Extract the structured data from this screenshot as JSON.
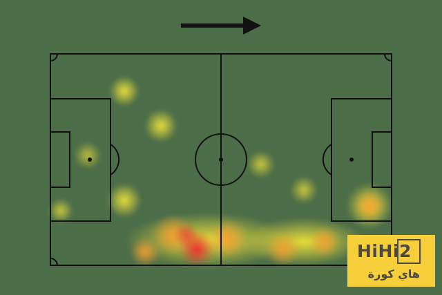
{
  "attack_direction": "right",
  "colors": {
    "background": "#4b6d48",
    "lines": "#111111",
    "heat_low": "#e8e03a",
    "heat_mid": "#f5a030",
    "heat_high": "#f03030"
  },
  "logo": {
    "name": "HiHi2",
    "arabic": "هاي كورة"
  }
}
